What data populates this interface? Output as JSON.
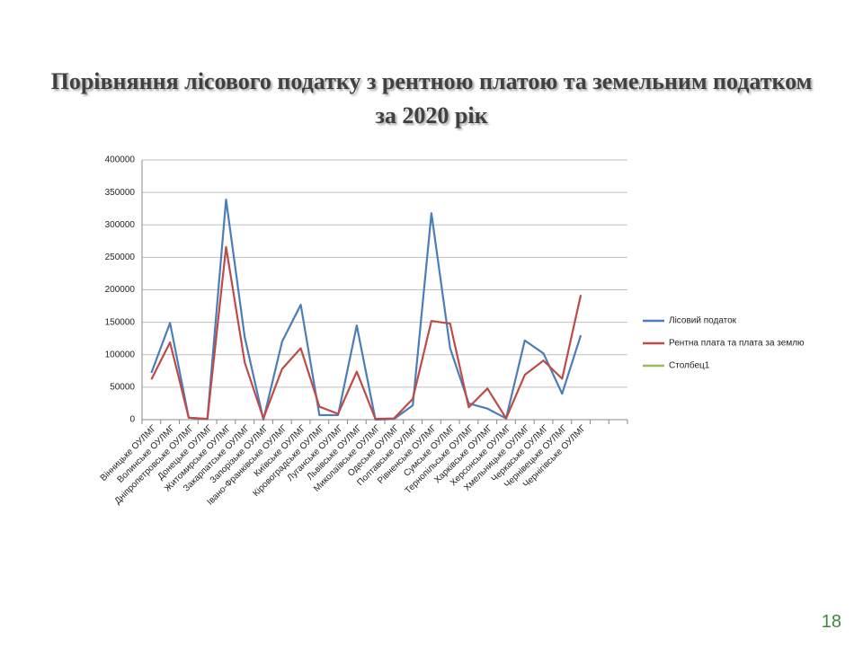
{
  "chart_data": {
    "type": "line",
    "title": "Порівняння лісового податку з рентною платою та земельним податком за 2020 рік",
    "page_number": "18",
    "categories": [
      "Вінницьке ОУЛМГ",
      "Волинське ОУЛМГ",
      "Дніпропетровське ОУЛМГ",
      "Донецьке ОУЛМГ",
      "Житомирське ОУЛМГ",
      "Закарпатське ОУЛМГ",
      "Запорізьке ОУЛМГ",
      "Івано-Франківське ОУЛМГ",
      "Київське ОУЛМГ",
      "Кіровоградське ОУЛМГ",
      "Луганське ОУЛМГ",
      "Львівське ОУЛМГ",
      "Миколаївське ОУЛМГ",
      "Одеське ОУЛМГ",
      "Полтавське ОУЛМГ",
      "Рівненське ОУЛМГ",
      "Сумське ОУЛМГ",
      "Тернопільське ОУЛМГ",
      "Харківське ОУЛМГ",
      "Херсонське ОУЛМГ",
      "Хмельницьке ОУЛМГ",
      "Черкаське ОУЛМГ",
      "Чернівецьке ОУЛМГ",
      "Чернігівське ОУЛМГ",
      null,
      null
    ],
    "series": [
      {
        "name": "Лісовий податок",
        "color": "#4a7ebb",
        "values": [
          72000,
          149000,
          3000,
          1000,
          339000,
          127000,
          0,
          120000,
          177000,
          7000,
          7000,
          145000,
          0,
          1000,
          22000,
          318000,
          110000,
          25000,
          17000,
          2000,
          122000,
          102000,
          40000,
          130000,
          null,
          null
        ]
      },
      {
        "name": "Рентна плата та плата за землю",
        "color": "#be4b48",
        "values": [
          62000,
          119000,
          3000,
          1000,
          266000,
          88000,
          2000,
          78000,
          110000,
          20000,
          9000,
          74000,
          1000,
          2000,
          32000,
          152000,
          148000,
          19000,
          48000,
          2000,
          69000,
          91000,
          63000,
          192000,
          null,
          null
        ]
      },
      {
        "name": "Столбец1",
        "color": "#98b954",
        "values": [
          null,
          null,
          null,
          null,
          null,
          null,
          null,
          null,
          null,
          null,
          null,
          null,
          null,
          null,
          null,
          null,
          null,
          null,
          null,
          null,
          null,
          null,
          null,
          null,
          null,
          null
        ]
      }
    ],
    "ylim": [
      0,
      400000
    ],
    "yticks": [
      0,
      50000,
      100000,
      150000,
      200000,
      250000,
      300000,
      350000,
      400000
    ],
    "grid": true,
    "legend": "right"
  }
}
